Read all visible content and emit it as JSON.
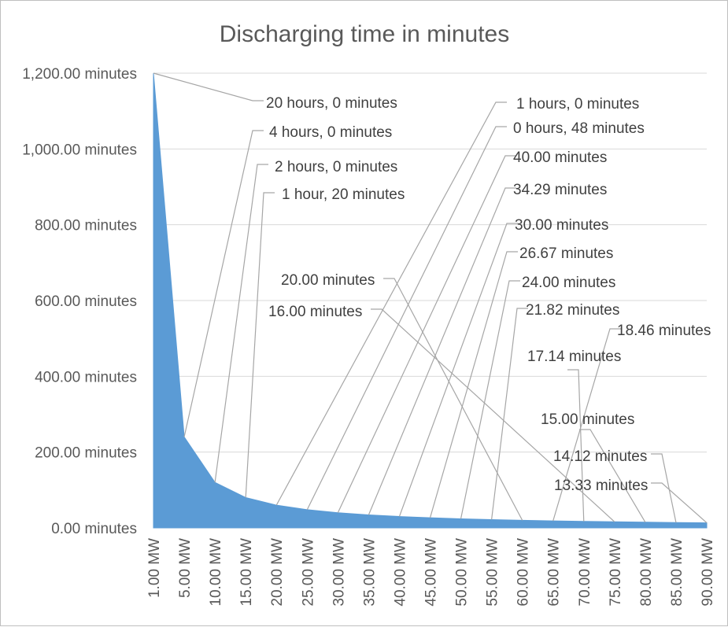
{
  "chart_data": {
    "type": "area",
    "title": "Discharging time in minutes",
    "xlabel": "",
    "ylabel": "",
    "ylim": [
      0,
      1200
    ],
    "grid": true,
    "legend": "none",
    "color": "#5b9bd5",
    "y_ticks": [
      0,
      200,
      400,
      600,
      800,
      1000,
      1200
    ],
    "y_tick_labels": [
      "0.00 minutes",
      "200.00 minutes",
      "400.00 minutes",
      "600.00 minutes",
      "800.00 minutes",
      "1,000.00 minutes",
      "1,200.00 minutes"
    ],
    "categories": [
      "1.00 MW",
      "5.00 MW",
      "10.00 MW",
      "15.00 MW",
      "20.00 MW",
      "25.00 MW",
      "30.00 MW",
      "35.00 MW",
      "40.00 MW",
      "45.00 MW",
      "50.00 MW",
      "55.00 MW",
      "60.00 MW",
      "65.00 MW",
      "70.00 MW",
      "75.00 MW",
      "80.00 MW",
      "85.00 MW",
      "90.00 MW"
    ],
    "values": [
      1200,
      240,
      120,
      80,
      60,
      48,
      40,
      34.29,
      30,
      26.67,
      24,
      21.82,
      20,
      18.46,
      17.14,
      16,
      15,
      14.12,
      13.33
    ],
    "data_labels": [
      "20 hours, 0 minutes",
      "4 hours, 0 minutes",
      "2 hours, 0 minutes",
      "1 hour, 20 minutes",
      "1 hours, 0 minutes",
      "0 hours, 48 minutes",
      "40.00 minutes",
      "34.29 minutes",
      "30.00 minutes",
      "26.67 minutes",
      "24.00 minutes",
      "21.82 minutes",
      "20.00 minutes",
      "18.46 minutes",
      "17.14 minutes",
      "16.00 minutes",
      "15.00 minutes",
      "14.12 minutes",
      "13.33 minutes"
    ]
  }
}
